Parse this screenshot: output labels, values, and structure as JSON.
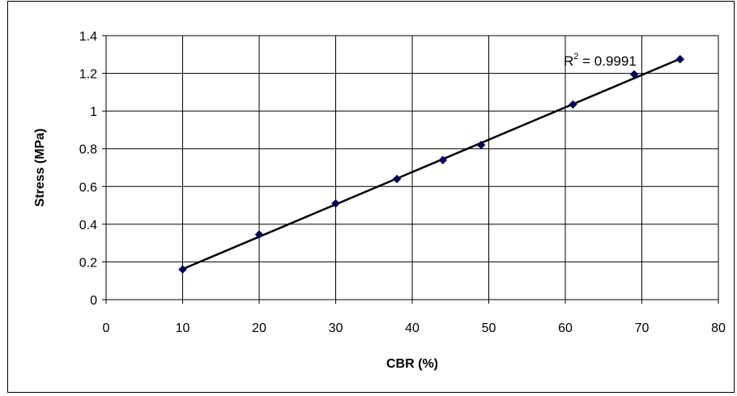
{
  "chart_data": {
    "type": "scatter",
    "title": "",
    "xlabel": "CBR (%)",
    "ylabel": "Stress (MPa)",
    "xlim": [
      0,
      80
    ],
    "ylim": [
      0,
      1.4
    ],
    "x_ticks": [
      0,
      10,
      20,
      30,
      40,
      50,
      60,
      70,
      80
    ],
    "y_ticks": [
      0,
      0.2,
      0.4,
      0.6,
      0.8,
      1,
      1.2,
      1.4
    ],
    "x_tick_labels": [
      "0",
      "10",
      "20",
      "30",
      "40",
      "50",
      "60",
      "70",
      "80"
    ],
    "y_tick_labels": [
      "0",
      "0.2",
      "0.4",
      "0.6",
      "0.8",
      "1",
      "1.2",
      "1.4"
    ],
    "grid": true,
    "legend": "none",
    "series": [
      {
        "marker": "diamond",
        "color": "#00005A",
        "x": [
          10,
          20,
          30,
          38,
          44,
          49,
          61,
          69,
          75
        ],
        "y": [
          0.16,
          0.345,
          0.51,
          0.64,
          0.74,
          0.82,
          1.035,
          1.195,
          1.275
        ]
      }
    ],
    "trendline": {
      "type": "linear",
      "x": [
        10,
        75
      ],
      "y": [
        0.162,
        1.277
      ],
      "color": "#000000"
    },
    "annotation": {
      "r_label": "R",
      "r_exponent": "2",
      "r_value": " = 0.9991"
    }
  }
}
